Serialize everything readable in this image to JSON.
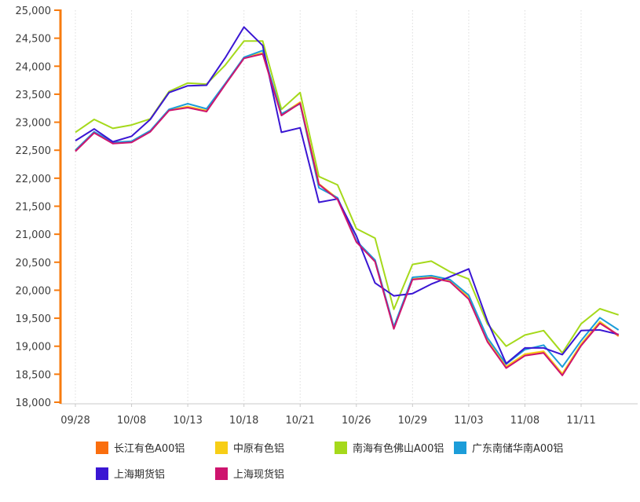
{
  "chart_data": {
    "type": "line",
    "title": "",
    "xlabel": "",
    "ylabel": "",
    "x": [
      "09/28",
      "09/29",
      "09/30",
      "10/08",
      "10/11",
      "10/12",
      "10/13",
      "10/14",
      "10/15",
      "10/18",
      "10/19",
      "10/20",
      "10/21",
      "10/22",
      "10/25",
      "10/26",
      "10/27",
      "10/28",
      "10/29",
      "11/01",
      "11/02",
      "11/03",
      "11/04",
      "11/05",
      "11/08",
      "11/09",
      "11/10",
      "11/11",
      "11/12",
      "11/15"
    ],
    "x_tick_labels": [
      "09/28",
      "10/08",
      "10/13",
      "10/18",
      "10/21",
      "10/26",
      "10/29",
      "11/03",
      "11/08",
      "11/11"
    ],
    "x_tick_indices": [
      0,
      3,
      6,
      9,
      12,
      15,
      18,
      21,
      24,
      27
    ],
    "ylim": [
      18000,
      25000
    ],
    "y_tick_step": 500,
    "y_tick_labels": [
      "25,000",
      "24,500",
      "24,000",
      "23,500",
      "23,000",
      "22,500",
      "22,000",
      "21,500",
      "21,000",
      "20,500",
      "20,000",
      "19,500",
      "19,000",
      "18,500",
      "18,000"
    ],
    "grid": "vertical-dotted",
    "legend_position": "bottom",
    "series": [
      {
        "name": "长江有色A00铝",
        "color": "#fa6e0e",
        "values": [
          22490,
          22820,
          22630,
          22650,
          22840,
          23220,
          23270,
          23200,
          23680,
          24150,
          24230,
          23130,
          23350,
          21900,
          21630,
          20870,
          20520,
          19330,
          20200,
          20230,
          20160,
          19860,
          19100,
          18630,
          18850,
          18900,
          18500,
          19030,
          19430,
          19180
        ]
      },
      {
        "name": "中原有色铝",
        "color": "#f7ce16",
        "values": [
          22500,
          22820,
          22630,
          22650,
          22840,
          23220,
          23280,
          23210,
          23680,
          24150,
          24240,
          23140,
          23360,
          21900,
          21640,
          20870,
          20530,
          19340,
          20200,
          20230,
          20170,
          19870,
          19110,
          18640,
          18860,
          18910,
          18510,
          19040,
          19440,
          19190
        ]
      },
      {
        "name": "南海有色佛山A00铝",
        "color": "#a5d91b",
        "values": [
          22820,
          23050,
          22890,
          22950,
          23060,
          23550,
          23700,
          23680,
          24020,
          24450,
          24450,
          23230,
          23530,
          22030,
          21880,
          21100,
          20930,
          19660,
          20460,
          20520,
          20330,
          20200,
          19400,
          19000,
          19200,
          19280,
          18880,
          19400,
          19670,
          19560
        ]
      },
      {
        "name": "广东南储华南A00铝",
        "color": "#1c9dd9",
        "values": [
          22500,
          22830,
          22640,
          22660,
          22850,
          23230,
          23330,
          23240,
          23690,
          24160,
          24280,
          23150,
          23330,
          21830,
          21650,
          20880,
          20540,
          19350,
          20230,
          20260,
          20190,
          19910,
          19150,
          18680,
          18940,
          19020,
          18630,
          19100,
          19510,
          19290
        ]
      },
      {
        "name": "上海期货铝",
        "color": "#3a16d3",
        "values": [
          22670,
          22880,
          22650,
          22750,
          23050,
          23530,
          23650,
          23660,
          24150,
          24700,
          24370,
          22820,
          22900,
          21570,
          21630,
          20970,
          20130,
          19900,
          19940,
          20110,
          20240,
          20380,
          19450,
          18690,
          18970,
          18970,
          18850,
          19280,
          19290,
          19210
        ]
      },
      {
        "name": "上海现货铝",
        "color": "#ce146e",
        "values": [
          22480,
          22810,
          22620,
          22640,
          22830,
          23210,
          23260,
          23190,
          23670,
          24140,
          24220,
          23120,
          23340,
          21890,
          21620,
          20860,
          20510,
          19310,
          20190,
          20220,
          20150,
          19840,
          19080,
          18610,
          18830,
          18880,
          18480,
          19010,
          19410,
          19200
        ]
      }
    ]
  },
  "axes": {
    "y_axis_color": "#f77b0e",
    "x_axis_color": "#c9c9c9",
    "gridline_color": "#dcdcdc",
    "label_color": "#3d3d3d"
  }
}
